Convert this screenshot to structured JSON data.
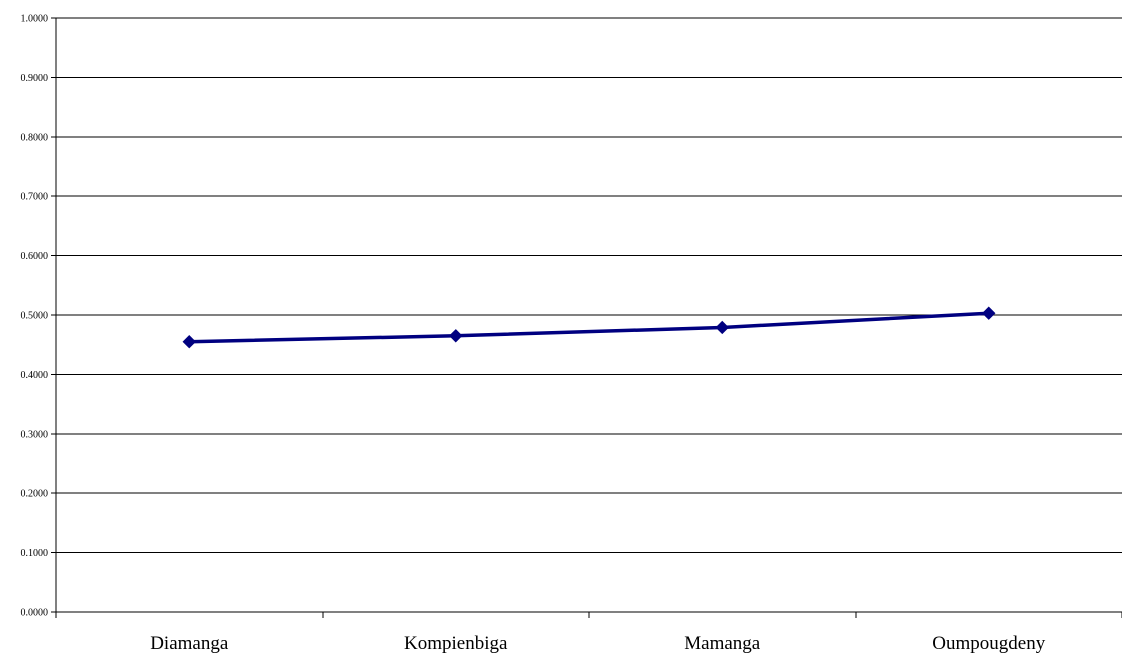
{
  "chart_data": {
    "type": "line",
    "title": "",
    "xlabel": "",
    "ylabel": "",
    "categories": [
      "Diamanga",
      "Kompienbiga",
      "Mamanga",
      "Oumpougdeny"
    ],
    "series": [
      {
        "values": [
          0.455,
          0.465,
          0.479,
          0.503
        ],
        "color": "#000080",
        "marker": "diamond"
      }
    ],
    "ylim": [
      0,
      1
    ],
    "yticks": [
      0.0,
      0.1,
      0.2,
      0.3,
      0.4,
      0.5,
      0.6,
      0.7,
      0.8,
      0.9,
      1.0
    ],
    "ytick_labels": [
      "0.0000",
      "0.1000",
      "0.2000",
      "0.3000",
      "0.4000",
      "0.5000",
      "0.6000",
      "0.7000",
      "0.8000",
      "0.9000",
      "1.0000"
    ],
    "grid": true,
    "legend": "none"
  }
}
